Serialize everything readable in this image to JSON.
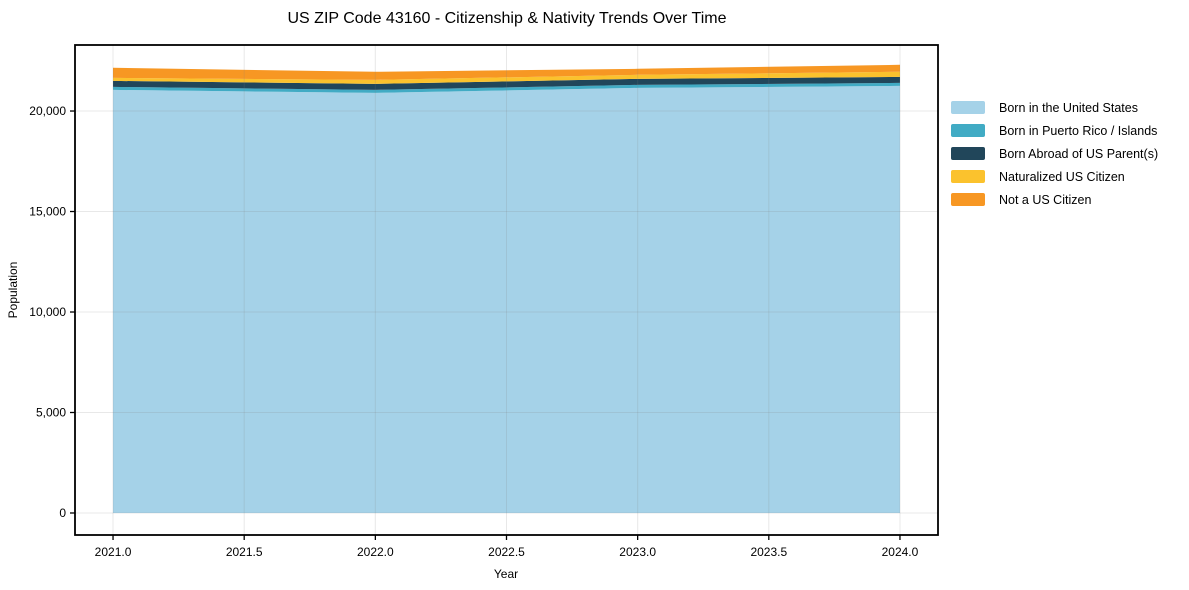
{
  "chart_data": {
    "type": "area",
    "stacked": true,
    "title": "US ZIP Code 43160 - Citizenship & Nativity Trends Over Time",
    "xlabel": "Year",
    "ylabel": "Population",
    "x": [
      2021,
      2022,
      2023,
      2024
    ],
    "series": [
      {
        "name": "Born in the United States",
        "color": "#a5d2e8",
        "values": [
          21050,
          20900,
          21150,
          21250
        ]
      },
      {
        "name": "Born in Puerto Rico / Islands",
        "color": "#41abc4",
        "values": [
          150,
          150,
          150,
          150
        ]
      },
      {
        "name": "Born Abroad of US Parent(s)",
        "color": "#21465a",
        "values": [
          300,
          300,
          300,
          300
        ]
      },
      {
        "name": "Naturalized US Citizen",
        "color": "#fbc22d",
        "values": [
          150,
          200,
          200,
          250
        ]
      },
      {
        "name": "Not a US Citizen",
        "color": "#f79723",
        "values": [
          500,
          400,
          300,
          350
        ]
      }
    ],
    "xlim": [
      2020.855,
      2024.145
    ],
    "ylim": [
      -1095,
      23285
    ],
    "x_ticks": [
      {
        "value": 2021.0,
        "label": "2021.0"
      },
      {
        "value": 2021.5,
        "label": "2021.5"
      },
      {
        "value": 2022.0,
        "label": "2022.0"
      },
      {
        "value": 2022.5,
        "label": "2022.5"
      },
      {
        "value": 2023.0,
        "label": "2023.0"
      },
      {
        "value": 2023.5,
        "label": "2023.5"
      },
      {
        "value": 2024.0,
        "label": "2024.0"
      }
    ],
    "y_ticks": [
      {
        "value": 0,
        "label": "0"
      },
      {
        "value": 5000,
        "label": "5,000"
      },
      {
        "value": 10000,
        "label": "10,000"
      },
      {
        "value": 15000,
        "label": "15,000"
      },
      {
        "value": 20000,
        "label": "20,000"
      }
    ],
    "grid": true,
    "legend_position": "right"
  }
}
